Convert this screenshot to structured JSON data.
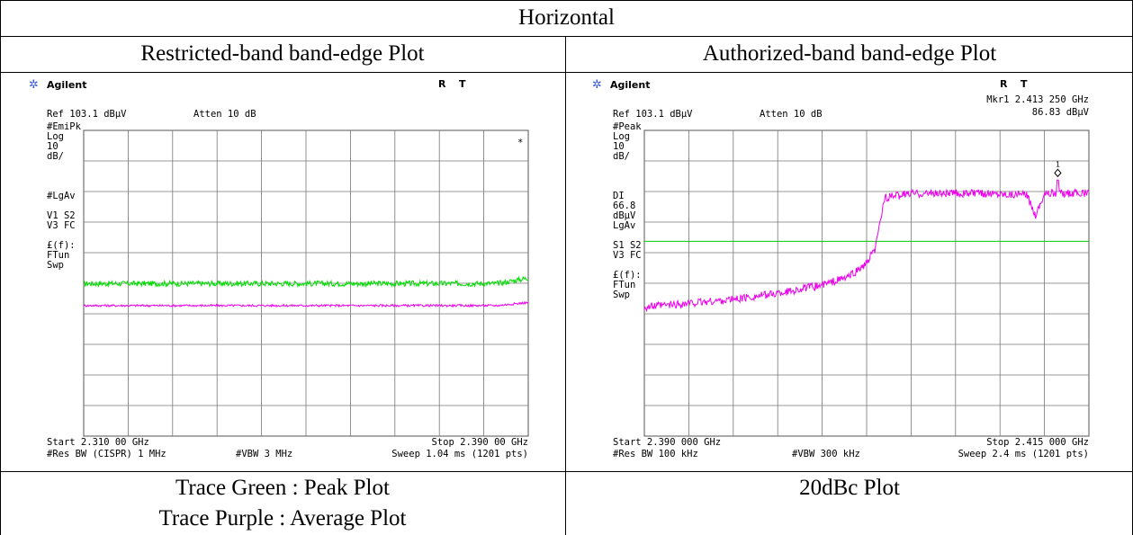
{
  "header": {
    "title": "Horizontal",
    "left_heading": "Restricted-band band-edge Plot",
    "right_heading": "Authorized-band band-edge Plot"
  },
  "captions": {
    "left_line1": "Trace Green : Peak Plot",
    "left_line2": "Trace Purple : Average Plot",
    "right_line1": "20dBc Plot"
  },
  "colors": {
    "peak_trace": "#00dd00",
    "avg_trace": "#ee00ee",
    "display_line": "#00cc00",
    "logo": "#3a5ad8"
  },
  "chart_data": [
    {
      "type": "line",
      "title": "Restricted-band band-edge Plot",
      "instrument": {
        "brand": "Agilent",
        "status_r": "R",
        "status_t": "T"
      },
      "ref_label": "Ref 103.1 dBµV",
      "atten_label": "Atten 10 dB",
      "left_labels": [
        "#EmiPk",
        "Log",
        "10",
        "dB/",
        "",
        "",
        "",
        "#LgAv",
        "",
        "V1  S2",
        "V3  FC",
        "",
        "£(f):",
        "FTun",
        "Swp"
      ],
      "marker_symbol": "*",
      "start_label": "Start 2.310 00 GHz",
      "stop_label": "Stop 2.390 00 GHz",
      "bottom_left": "#Res BW (CISPR) 1 MHz",
      "bottom_mid": "#VBW 3 MHz",
      "bottom_right": "Sweep 1.04 ms (1201 pts)",
      "x_range_ghz": [
        2.31,
        2.39
      ],
      "y_ref_dbuv": 103.1,
      "y_scale_db_per_div": 10,
      "series": [
        {
          "name": "Peak",
          "color": "#00dd00",
          "level_dbuv": 53.0,
          "end_level_dbuv": 54.8,
          "noise_db": 0.9
        },
        {
          "name": "Average",
          "color": "#ee00ee",
          "level_dbuv": 45.8,
          "end_level_dbuv": 46.8,
          "noise_db": 0.35
        }
      ]
    },
    {
      "type": "line",
      "title": "Authorized-band band-edge Plot",
      "instrument": {
        "brand": "Agilent",
        "status_r": "R",
        "status_t": "T"
      },
      "marker_readout_line1": "Mkr1  2.413 250 GHz",
      "marker_readout_line2": "86.83 dBµV",
      "ref_label": "Ref 103.1 dBµV",
      "atten_label": "Atten 10 dB",
      "left_labels": [
        "#Peak",
        "Log",
        "10",
        "dB/",
        "",
        "",
        "",
        "DI",
        "66.8",
        "dBµV",
        "LgAv",
        "",
        "S1  S2",
        "V3  FC",
        "",
        "£(f):",
        "FTun",
        "Swp"
      ],
      "marker_label": "1",
      "marker_freq_ghz": 2.41325,
      "marker_level_dbuv": 86.83,
      "display_line_dbuv": 66.8,
      "start_label": "Start 2.390 000 GHz",
      "stop_label": "Stop 2.415 000 GHz",
      "bottom_left": "#Res BW 100 kHz",
      "bottom_mid": "#VBW 300 kHz",
      "bottom_right": "Sweep 2.4 ms (1201 pts)",
      "x_range_ghz": [
        2.39,
        2.415
      ],
      "y_ref_dbuv": 103.1,
      "y_scale_db_per_div": 10,
      "series": [
        {
          "name": "Peak",
          "color": "#ee00ee",
          "profile_ghz": [
            2.39,
            2.3925,
            2.395,
            2.3975,
            2.4,
            2.4015,
            2.4025,
            2.403,
            2.4035,
            2.405,
            2.41,
            2.4115,
            2.412,
            2.4125,
            2.415
          ],
          "profile_dbuv": [
            45.3,
            46.5,
            47.8,
            49.8,
            52.5,
            55.2,
            59.5,
            64.5,
            81.0,
            82.5,
            82.5,
            82.0,
            75.5,
            82.5,
            82.5
          ]
        }
      ]
    }
  ]
}
